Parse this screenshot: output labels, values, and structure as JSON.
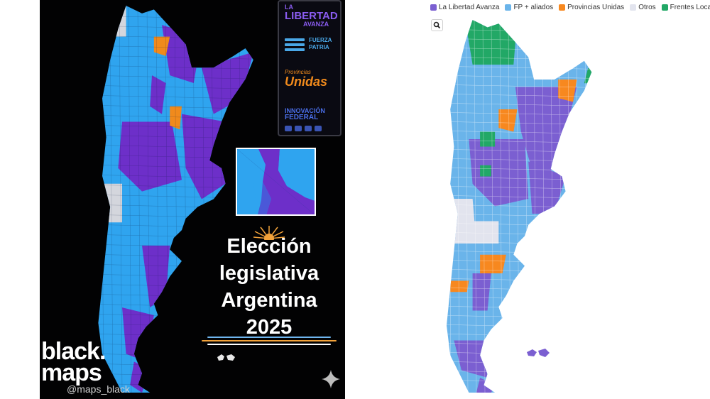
{
  "left": {
    "parties": {
      "lla": {
        "line1": "LA",
        "line2": "LIBERTAD",
        "line3": "AVANZA",
        "color": "#8a5cf0"
      },
      "fp": {
        "line1": "FUERZA",
        "line2": "PATRIA",
        "color": "#4aa8e8"
      },
      "pu": {
        "line1": "Provincias",
        "line2": "Unidas",
        "color": "#f08a1c"
      },
      "if": {
        "line1": "INNOVACIÓN",
        "line2": "FEDERAL",
        "color": "#4a6ee8"
      }
    },
    "title": {
      "line1": "Elección",
      "line2": "legislativa",
      "line3": "Argentina",
      "line4": "2025"
    },
    "brand": {
      "line1": "black.",
      "line2": "maps"
    },
    "handle": "@maps_black",
    "colors": {
      "lla": "#6d2fc9",
      "fp": "#2fa4ef",
      "pu": "#f08a1c",
      "otros": "#d4d6dd",
      "bg": "#020203"
    }
  },
  "right": {
    "legend": [
      {
        "label": "La Libertad Avanza",
        "color": "#7b5fd1"
      },
      {
        "label": "FP + aliados",
        "color": "#6ab4ea"
      },
      {
        "label": "Provincias Unidas",
        "color": "#f7881f"
      },
      {
        "label": "Otros",
        "color": "#e2e4ee"
      },
      {
        "label": "Frentes Locales",
        "color": "#22a866"
      }
    ],
    "search_icon": "search-icon"
  }
}
